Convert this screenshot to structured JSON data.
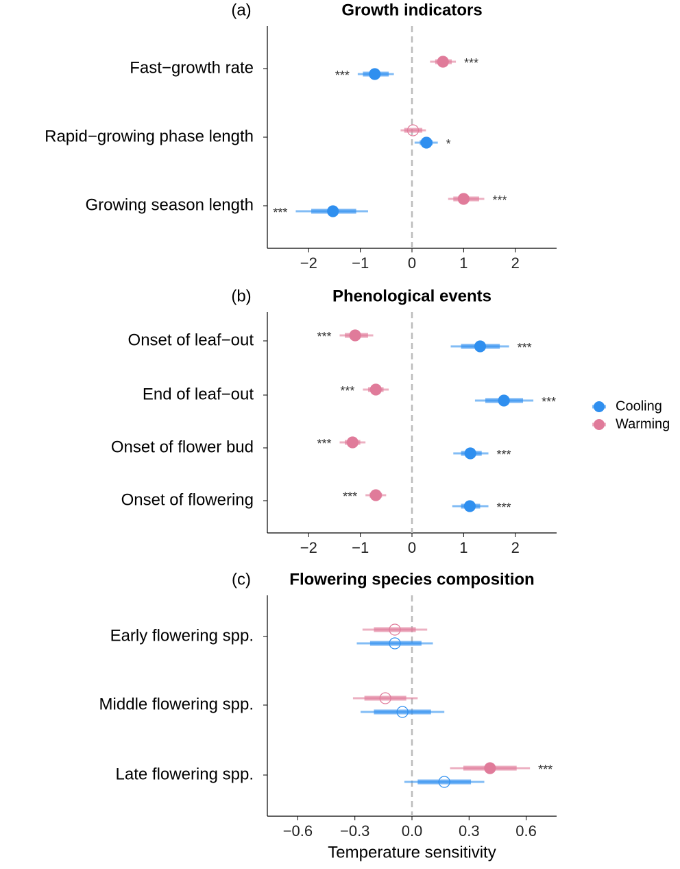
{
  "chart_data": [
    {
      "type": "forest",
      "panel_label": "(a)",
      "title": "Growth indicators",
      "categories": [
        "Fast−growth rate",
        "Rapid−growing phase length",
        "Growing season length"
      ],
      "series": [
        {
          "color": "#e07b9a",
          "values": [
            0.6,
            0.02,
            1.0
          ],
          "ci_low": [
            0.35,
            -0.22,
            0.7
          ],
          "ci_high": [
            0.85,
            0.27,
            1.4
          ],
          "ci50_low": [
            0.45,
            -0.15,
            0.8
          ],
          "ci50_high": [
            0.77,
            0.2,
            1.3
          ],
          "significance": [
            "***",
            null,
            "***"
          ]
        },
        {
          "color": "#2f8fef",
          "values": [
            -0.72,
            0.28,
            -1.53
          ],
          "ci_low": [
            -1.05,
            0.05,
            -2.25
          ],
          "ci_high": [
            -0.35,
            0.5,
            -0.85
          ],
          "ci50_low": [
            -0.95,
            0.15,
            -1.95
          ],
          "ci50_high": [
            -0.45,
            0.4,
            -1.08
          ],
          "significance": [
            "***",
            "*",
            "***"
          ]
        }
      ],
      "xlim": [
        -2.8,
        2.8
      ],
      "xticks": [
        {
          "value": -2,
          "label": "−2"
        },
        {
          "value": -1,
          "label": "−1"
        },
        0,
        1,
        2
      ]
    },
    {
      "type": "forest",
      "panel_label": "(b)",
      "title": "Phenological events",
      "categories": [
        "Onset of leaf−out",
        "End of leaf−out",
        "Onset of flower bud",
        "Onset of flowering"
      ],
      "series": [
        {
          "name": "Warming",
          "color": "#e07b9a",
          "values": [
            -1.1,
            -0.7,
            -1.15,
            -0.7
          ],
          "ci_low": [
            -1.4,
            -0.95,
            -1.4,
            -0.9
          ],
          "ci_high": [
            -0.75,
            -0.45,
            -0.9,
            -0.5
          ],
          "ci50_low": [
            -1.3,
            -0.85,
            -1.3,
            -0.82
          ],
          "ci50_high": [
            -0.85,
            -0.55,
            -1.0,
            -0.58
          ],
          "significance": [
            "***",
            "***",
            "***",
            "***"
          ]
        },
        {
          "name": "Cooling",
          "color": "#2f8fef",
          "values": [
            1.32,
            1.78,
            1.13,
            1.12
          ],
          "ci_low": [
            0.75,
            1.22,
            0.8,
            0.78
          ],
          "ci_high": [
            1.88,
            2.35,
            1.48,
            1.48
          ],
          "ci50_low": [
            0.95,
            1.42,
            0.95,
            0.95
          ],
          "ci50_high": [
            1.7,
            2.15,
            1.35,
            1.32
          ],
          "significance": [
            "***",
            "***",
            "***",
            "***"
          ]
        }
      ],
      "xlim": [
        -2.8,
        2.8
      ],
      "xticks": [
        {
          "value": -2,
          "label": "−2"
        },
        {
          "value": -1,
          "label": "−1"
        },
        0,
        1,
        2
      ]
    },
    {
      "type": "forest",
      "panel_label": "(c)",
      "title": "Flowering species composition",
      "x_label": "Temperature sensitivity",
      "categories": [
        "Early flowering spp.",
        "Middle flowering spp.",
        "Late flowering spp."
      ],
      "series": [
        {
          "color": "#e07b9a",
          "values": [
            -0.09,
            -0.14,
            0.41
          ],
          "ci_low": [
            -0.26,
            -0.31,
            0.2
          ],
          "ci_high": [
            0.08,
            0.03,
            0.62
          ],
          "ci50_low": [
            -0.2,
            -0.25,
            0.27
          ],
          "ci50_high": [
            0.02,
            -0.03,
            0.55
          ],
          "significance": [
            null,
            null,
            "***"
          ]
        },
        {
          "color": "#2f8fef",
          "values": [
            -0.09,
            -0.05,
            0.17
          ],
          "ci_low": [
            -0.29,
            -0.27,
            -0.04
          ],
          "ci_high": [
            0.11,
            0.17,
            0.38
          ],
          "ci50_low": [
            -0.22,
            -0.2,
            0.03
          ],
          "ci50_high": [
            0.05,
            0.1,
            0.31
          ],
          "significance": [
            null,
            null,
            null
          ]
        }
      ],
      "xlim": [
        -0.76,
        0.76
      ],
      "xticks": [
        {
          "value": -0.6,
          "label": "−0.6"
        },
        {
          "value": -0.3,
          "label": "−0.3"
        },
        {
          "value": 0,
          "label": "0.0"
        },
        0.3,
        0.6
      ]
    }
  ]
}
